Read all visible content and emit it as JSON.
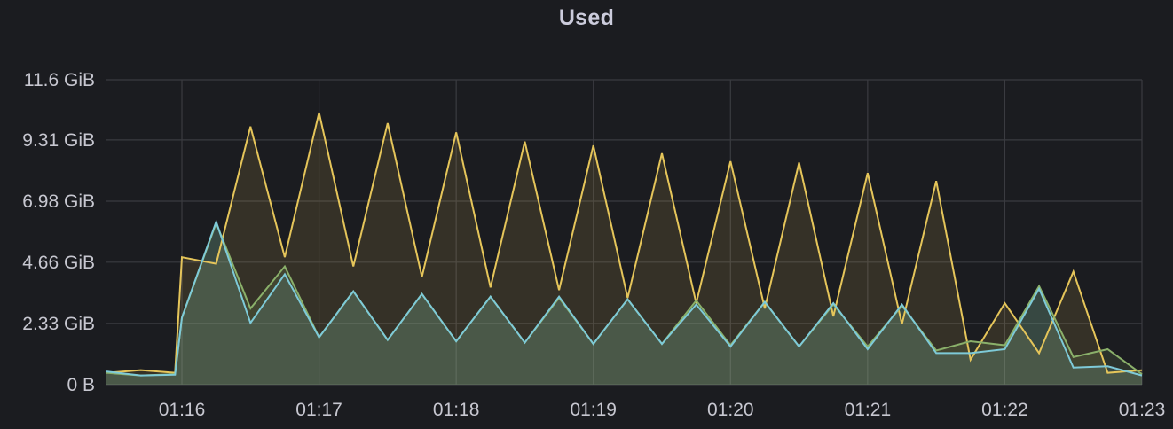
{
  "panel": {
    "title": "Used"
  },
  "chart_data": {
    "type": "area",
    "title": "Used",
    "xlabel": "",
    "ylabel": "",
    "y_unit": "GiB",
    "x_unit": "minute",
    "x_range": [
      15.45,
      23.0
    ],
    "ylim": [
      0,
      11.6
    ],
    "y_ticks": [
      {
        "value": 0,
        "label": "0 B"
      },
      {
        "value": 2.33,
        "label": "2.33 GiB"
      },
      {
        "value": 4.66,
        "label": "4.66 GiB"
      },
      {
        "value": 6.98,
        "label": "6.98 GiB"
      },
      {
        "value": 9.31,
        "label": "9.31 GiB"
      },
      {
        "value": 11.6,
        "label": "11.6 GiB"
      }
    ],
    "x_ticks": [
      {
        "value": 16,
        "label": "01:16"
      },
      {
        "value": 17,
        "label": "01:17"
      },
      {
        "value": 18,
        "label": "01:18"
      },
      {
        "value": 19,
        "label": "01:19"
      },
      {
        "value": 20,
        "label": "01:20"
      },
      {
        "value": 21,
        "label": "01:21"
      },
      {
        "value": 22,
        "label": "01:22"
      },
      {
        "value": 23,
        "label": "01:23"
      }
    ],
    "grid": true,
    "legend": "none",
    "series": [
      {
        "color": "#e5c55a",
        "fill": "rgba(229,197,90,0.13)",
        "x": [
          15.45,
          15.7,
          15.95,
          16.0,
          16.25,
          16.5,
          16.75,
          17.0,
          17.25,
          17.5,
          17.75,
          18.0,
          18.25,
          18.5,
          18.75,
          19.0,
          19.25,
          19.5,
          19.75,
          20.0,
          20.25,
          20.5,
          20.75,
          21.0,
          21.25,
          21.5,
          21.75,
          22.0,
          22.25,
          22.5,
          22.75,
          23.0
        ],
        "y": [
          0.45,
          0.55,
          0.45,
          4.85,
          4.6,
          9.82,
          4.85,
          10.35,
          4.5,
          9.95,
          4.1,
          9.6,
          3.7,
          9.25,
          3.6,
          9.1,
          3.3,
          8.8,
          3.1,
          8.5,
          2.9,
          8.45,
          2.6,
          8.05,
          2.3,
          7.75,
          0.95,
          3.1,
          1.2,
          4.3,
          0.45,
          0.55
        ]
      },
      {
        "color": "#8ab06a",
        "fill": "rgba(138,176,106,0.16)",
        "x": [
          15.45,
          15.7,
          15.95,
          16.0,
          16.25,
          16.5,
          16.75,
          17.0,
          17.25,
          17.5,
          17.75,
          18.0,
          18.25,
          18.5,
          18.75,
          19.0,
          19.25,
          19.5,
          19.75,
          20.0,
          20.25,
          20.5,
          20.75,
          21.0,
          21.25,
          21.5,
          21.75,
          22.0,
          22.25,
          22.5,
          22.75,
          23.0
        ],
        "y": [
          0.45,
          0.35,
          0.4,
          2.55,
          6.15,
          2.9,
          4.5,
          1.8,
          3.55,
          1.7,
          3.45,
          1.65,
          3.35,
          1.6,
          3.3,
          1.55,
          3.25,
          1.55,
          3.2,
          1.5,
          3.15,
          1.45,
          3.05,
          1.45,
          3.0,
          1.3,
          1.65,
          1.5,
          3.75,
          1.05,
          1.35,
          0.4
        ]
      },
      {
        "color": "#7ecad8",
        "fill": "rgba(126,202,216,0.14)",
        "x": [
          15.45,
          15.7,
          15.95,
          16.0,
          16.25,
          16.5,
          16.75,
          17.0,
          17.25,
          17.5,
          17.75,
          18.0,
          18.25,
          18.5,
          18.75,
          19.0,
          19.25,
          19.5,
          19.75,
          20.0,
          20.25,
          20.5,
          20.75,
          21.0,
          21.25,
          21.5,
          21.75,
          22.0,
          22.25,
          22.5,
          22.75,
          23.0
        ],
        "y": [
          0.5,
          0.35,
          0.38,
          2.55,
          6.2,
          2.35,
          4.2,
          1.8,
          3.55,
          1.7,
          3.45,
          1.65,
          3.35,
          1.6,
          3.35,
          1.55,
          3.25,
          1.55,
          3.05,
          1.45,
          3.15,
          1.45,
          3.1,
          1.35,
          3.05,
          1.2,
          1.2,
          1.35,
          3.65,
          0.65,
          0.7,
          0.35
        ]
      }
    ]
  }
}
